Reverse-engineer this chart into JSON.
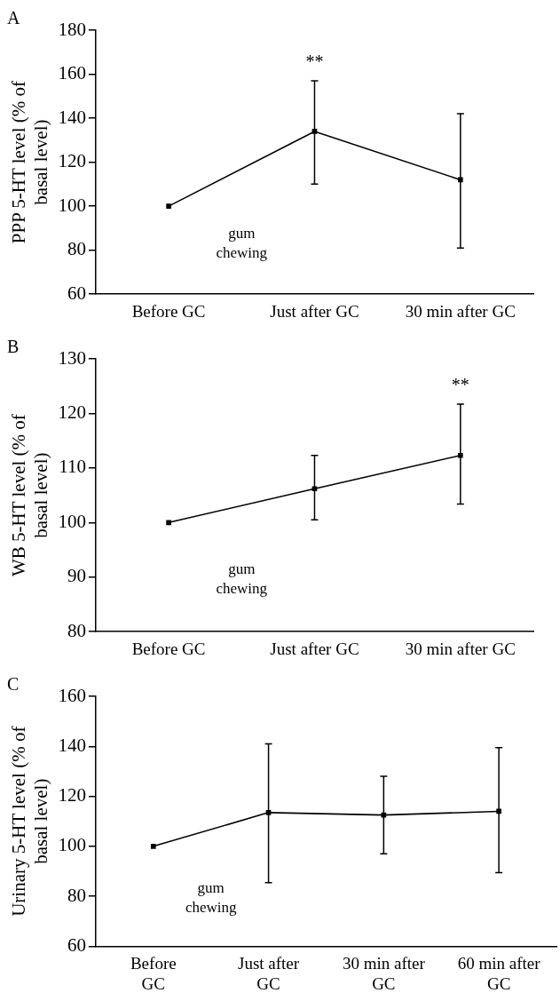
{
  "chart_data": [
    {
      "type": "line",
      "title": "A",
      "ylabel": "PPP 5-HT level (% of basal level)",
      "categories": [
        "Before GC",
        "Just after GC",
        "30 min after GC"
      ],
      "series": [
        {
          "color": "#000000",
          "values": [
            100,
            134,
            112
          ],
          "errors": [
            null,
            [
              110,
              157
            ],
            [
              81,
              142
            ]
          ]
        }
      ],
      "ylim": [
        60,
        180
      ],
      "yticks": [
        60,
        80,
        100,
        120,
        140,
        160,
        180
      ],
      "grid": false,
      "legend": false,
      "marker": "square",
      "line_style": "solid",
      "annotations": [
        {
          "text": "**",
          "x": "Just after GC",
          "y": 157
        },
        "gum chewing"
      ]
    },
    {
      "type": "line",
      "title": "B",
      "ylabel": "WB 5-HT level (% of basal level)",
      "categories": [
        "Before GC",
        "Just after GC",
        "30 min after GC"
      ],
      "series": [
        {
          "color": "#000000",
          "values": [
            100,
            106.2,
            112.3
          ],
          "errors": [
            null,
            [
              100.5,
              112.3
            ],
            [
              103.4,
              121.7
            ]
          ]
        }
      ],
      "ylim": [
        80,
        130
      ],
      "yticks": [
        80,
        90,
        100,
        110,
        120,
        130
      ],
      "grid": false,
      "legend": false,
      "marker": "square",
      "line_style": "solid",
      "annotations": [
        {
          "text": "**",
          "x": "30 min after GC",
          "y": 121.7
        },
        "gum chewing"
      ]
    },
    {
      "type": "line",
      "title": "C",
      "ylabel": "Urinary 5-HT level (% of basal level)",
      "categories": [
        "Before GC",
        "Just after GC",
        "30 min after GC",
        "60 min after GC"
      ],
      "series": [
        {
          "color": "#000000",
          "values": [
            100,
            113.5,
            112.5,
            114
          ],
          "errors": [
            null,
            [
              85.5,
              141
            ],
            [
              97,
              128
            ],
            [
              89.5,
              139.5
            ]
          ]
        }
      ],
      "ylim": [
        60,
        160
      ],
      "yticks": [
        60,
        80,
        100,
        120,
        140,
        160
      ],
      "grid": false,
      "legend": false,
      "marker": "square",
      "line_style": "solid",
      "annotations": [
        "gum chewing"
      ]
    }
  ]
}
